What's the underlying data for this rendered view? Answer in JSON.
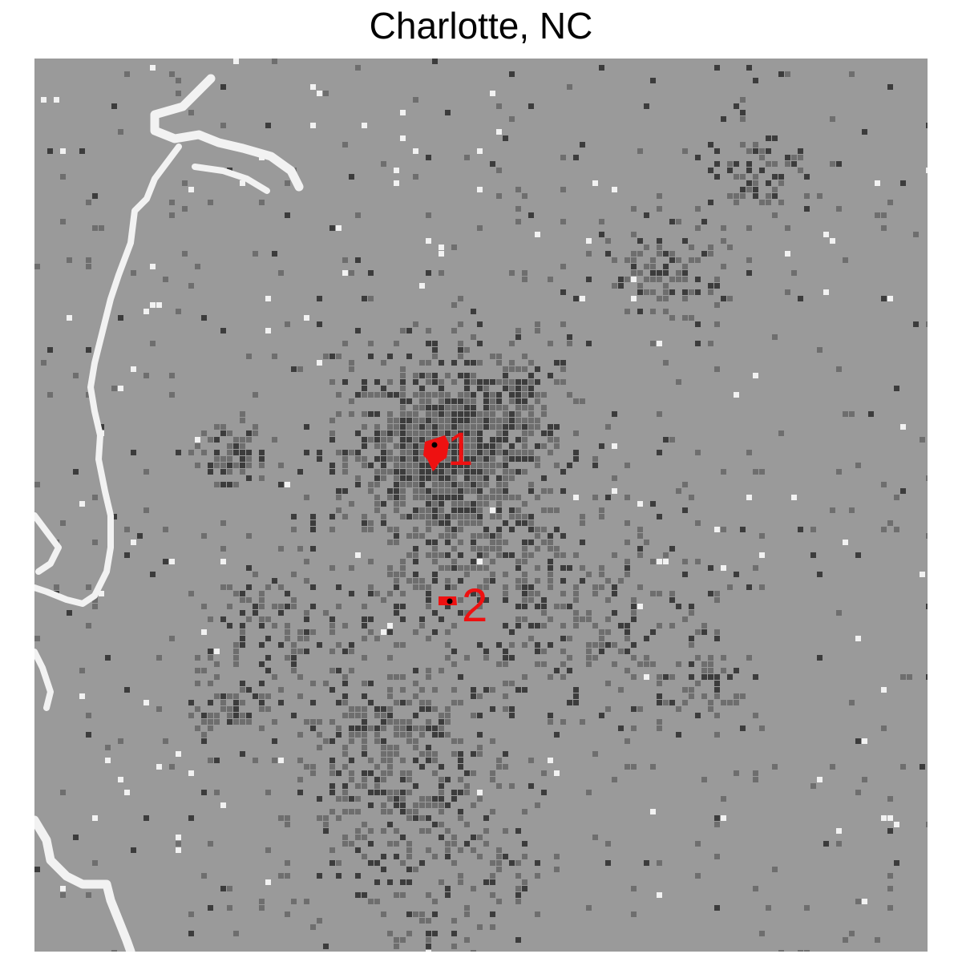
{
  "title": "Charlotte, NC",
  "map": {
    "base_color": "#9a9a9a",
    "dense_color": "#3c3c3c",
    "water_color": "#f2f2f2",
    "center_color": "#ee1111",
    "marker_color": "#000000"
  },
  "centers": [
    {
      "id": 1,
      "label": "1"
    },
    {
      "id": 2,
      "label": "2"
    }
  ]
}
